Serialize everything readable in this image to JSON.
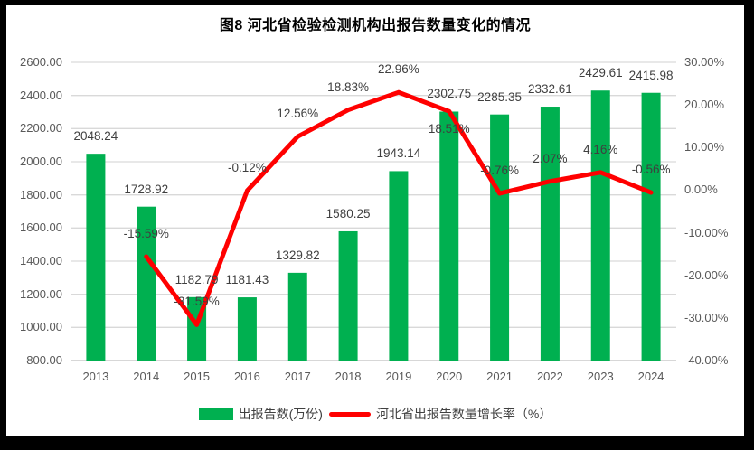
{
  "title": "图8 河北省检验检测机构出报告数量变化的情况",
  "chart_data": {
    "type": "bar",
    "subtype": "bar-line-combo",
    "categories": [
      "2013",
      "2014",
      "2015",
      "2016",
      "2017",
      "2018",
      "2019",
      "2020",
      "2021",
      "2022",
      "2023",
      "2024"
    ],
    "series": [
      {
        "name": "出报告数(万份)",
        "type": "bar",
        "axis": "left",
        "color": "#00B050",
        "values": [
          2048.24,
          1728.92,
          1182.79,
          1181.43,
          1329.82,
          1580.25,
          1943.14,
          2302.75,
          2285.35,
          2332.61,
          2429.61,
          2415.98
        ],
        "labels": [
          "2048.24",
          "1728.92",
          "1182.79",
          "1181.43",
          "1329.82",
          "1580.25",
          "1943.14",
          "2302.75",
          "2285.35",
          "2332.61",
          "2429.61",
          "2415.98"
        ]
      },
      {
        "name": "河北省出报告数量增长率（%）",
        "type": "line",
        "axis": "right",
        "color": "#FF0000",
        "values": [
          null,
          -15.59,
          -31.59,
          -0.12,
          12.56,
          18.83,
          22.96,
          18.51,
          -0.76,
          2.07,
          4.16,
          -0.56
        ],
        "labels": [
          null,
          "-15.59%",
          "-31.59%",
          "-0.12%",
          "12.56%",
          "18.83%",
          "22.96%",
          "18.51%",
          "-0.76%",
          "2.07%",
          "4.16%",
          "-0.56%"
        ]
      }
    ],
    "left_axis": {
      "min": 800,
      "max": 2600,
      "step": 200,
      "tick_labels": [
        "2600.00",
        "2400.00",
        "2200.00",
        "2000.00",
        "1800.00",
        "1600.00",
        "1400.00",
        "1200.00",
        "1000.00",
        "800.00"
      ]
    },
    "right_axis": {
      "min": -40,
      "max": 30,
      "step": 10,
      "tick_labels": [
        "30.00%",
        "20.00%",
        "10.00%",
        "0.00%",
        "-10.00%",
        "-20.00%",
        "-30.00%",
        "-40.00%"
      ]
    },
    "grid": "horizontal",
    "legend_position": "bottom"
  },
  "legend": {
    "items": [
      {
        "label": "出报告数(万份)",
        "swatch": "bar",
        "color": "#00B050"
      },
      {
        "label": "河北省出报告数量增长率（%）",
        "swatch": "line",
        "color": "#FF0000"
      }
    ]
  },
  "colors": {
    "bar": "#00B050",
    "line": "#FF0000",
    "gridline": "#D9D9D9",
    "baseline": "#BFBFBF",
    "tick_text": "#595959",
    "label_text": "#3F3F3F",
    "frame_background": "#000000",
    "chart_background": "#FFFFFF"
  }
}
